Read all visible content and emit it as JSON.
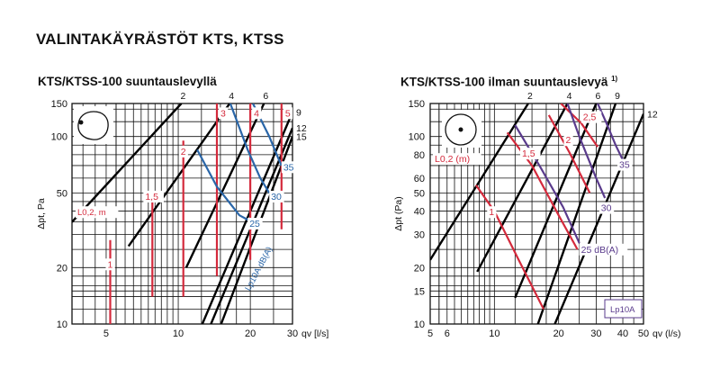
{
  "page": {
    "title": "VALINTAKÄYRÄSTÖT KTS, KTSS"
  },
  "colors": {
    "grid": "#111111",
    "black_lines": "#000000",
    "red_lines": "#d42a3c",
    "blue_lines": "#2a66a8",
    "purple_lines": "#5a3b8c"
  },
  "chart_data": [
    {
      "type": "line",
      "title": "KTS/KTSS-100 suuntauslevyllä",
      "xlabel": "qv [l/s]",
      "ylabel": "Δpt, Pa",
      "xscale": "log",
      "yscale": "log",
      "xlim": [
        3.6,
        30
      ],
      "ylim": [
        10,
        150
      ],
      "x_ticks": [
        5,
        10,
        20,
        30
      ],
      "y_ticks": [
        10,
        20,
        50,
        100,
        150
      ],
      "grid": true,
      "damper_position_lines": [
        {
          "label": "2",
          "points": [
            [
              3.6,
              35
            ],
            [
              10.3,
              150
            ]
          ]
        },
        {
          "label": "4",
          "points": [
            [
              6.2,
              26
            ],
            [
              16.4,
              150
            ]
          ]
        },
        {
          "label": "6",
          "points": [
            [
              10.8,
              20
            ],
            [
              22.8,
              150
            ]
          ]
        },
        {
          "label": "9",
          "points": [
            [
              12.6,
              10
            ],
            [
              30,
              135
            ]
          ]
        },
        {
          "label": "12",
          "points": [
            [
              13.7,
              10
            ],
            [
              30,
              111
            ]
          ]
        },
        {
          "label": "15",
          "points": [
            [
              15.1,
              10
            ],
            [
              30,
              100
            ]
          ]
        }
      ],
      "throw_length_lines": {
        "label": "L0,2, m",
        "lines": [
          {
            "label": "1",
            "points": [
              [
                5.2,
                10
              ],
              [
                5.2,
                28
              ]
            ]
          },
          {
            "label": "1,5",
            "points": [
              [
                7.8,
                14
              ],
              [
                7.8,
                50
              ]
            ]
          },
          {
            "label": "2",
            "points": [
              [
                10.5,
                14
              ],
              [
                10.5,
                95
              ]
            ]
          },
          {
            "label": "3",
            "points": [
              [
                14.5,
                18
              ],
              [
                14.5,
                150
              ]
            ]
          },
          {
            "label": "4",
            "points": [
              [
                20,
                22
              ],
              [
                20,
                150
              ]
            ]
          },
          {
            "label": "5",
            "points": [
              [
                27,
                32
              ],
              [
                27,
                150
              ]
            ]
          }
        ]
      },
      "sound_level_lines": {
        "label": "Lp10A dB(A)",
        "lines": [
          {
            "label": "25",
            "points": [
              [
                12,
                85
              ],
              [
                14.5,
                54
              ],
              [
                18,
                38
              ],
              [
                19.5,
                36
              ]
            ]
          },
          {
            "label": "30",
            "points": [
              [
                16.5,
                150
              ],
              [
                19.5,
                85
              ],
              [
                22,
                60
              ],
              [
                24,
                50
              ]
            ]
          },
          {
            "label": "35",
            "points": [
              [
                20.5,
                150
              ],
              [
                24,
                100
              ],
              [
                26,
                78
              ],
              [
                27,
                70
              ]
            ]
          }
        ]
      },
      "annotations": [
        "Lp10A dB(A)",
        "L0,2, m"
      ]
    },
    {
      "type": "line",
      "title": "KTS/KTSS-100 ilman suuntauslevyä",
      "title_footnote": "1)",
      "xlabel": "qv (l/s)",
      "ylabel": "Δpt (Pa)",
      "xscale": "log",
      "yscale": "log",
      "xlim": [
        5,
        50
      ],
      "ylim": [
        10,
        150
      ],
      "x_ticks": [
        5,
        6,
        10,
        20,
        30,
        40,
        50
      ],
      "y_ticks": [
        10,
        15,
        20,
        30,
        40,
        50,
        60,
        80,
        100,
        150
      ],
      "grid": true,
      "damper_position_lines": [
        {
          "label": "2",
          "points": [
            [
              5,
              22
            ],
            [
              14.4,
              150
            ]
          ]
        },
        {
          "label": "4",
          "points": [
            [
              8.3,
              19
            ],
            [
              22,
              150
            ]
          ]
        },
        {
          "label": "6",
          "points": [
            [
              12.5,
              13.8
            ],
            [
              30,
              150
            ]
          ]
        },
        {
          "label": "9",
          "points": [
            [
              16,
              10
            ],
            [
              37,
              150
            ]
          ]
        },
        {
          "label": "12",
          "points": [
            [
              19.2,
              10
            ],
            [
              50,
              132
            ]
          ]
        }
      ],
      "throw_length_lines": {
        "label": "L0,2 (m)",
        "lines": [
          {
            "label": "1",
            "points": [
              [
                8.2,
                55
              ],
              [
                10,
                40
              ],
              [
                13,
                22
              ],
              [
                17,
                12
              ]
            ]
          },
          {
            "label": "1,5",
            "points": [
              [
                11.5,
                105
              ],
              [
                15,
                70
              ],
              [
                20,
                38
              ],
              [
                24.5,
                25
              ]
            ]
          },
          {
            "label": "2",
            "points": [
              [
                18,
                130
              ],
              [
                22.5,
                82
              ],
              [
                28,
                50
              ]
            ]
          },
          {
            "label": "2,5",
            "points": [
              [
                20.5,
                150
              ],
              [
                25.5,
                118
              ],
              [
                30.5,
                88
              ]
            ]
          }
        ]
      },
      "sound_level_lines": {
        "label": "Lp10A",
        "lines": [
          {
            "label": "25 dB(A)",
            "points": [
              [
                12.5,
                115
              ],
              [
                16.5,
                68
              ],
              [
                21,
                42
              ],
              [
                25,
                27
              ]
            ]
          },
          {
            "label": "30",
            "points": [
              [
                22,
                150
              ],
              [
                25,
                100
              ],
              [
                30,
                60
              ],
              [
                33,
                47
              ]
            ]
          },
          {
            "label": "35",
            "points": [
              [
                30.5,
                150
              ],
              [
                33.5,
                118
              ],
              [
                37,
                90
              ],
              [
                40,
                75
              ]
            ]
          }
        ]
      },
      "annotations": [
        "L0,2 (m)",
        "Lp10A",
        "25 dB(A)"
      ]
    }
  ]
}
